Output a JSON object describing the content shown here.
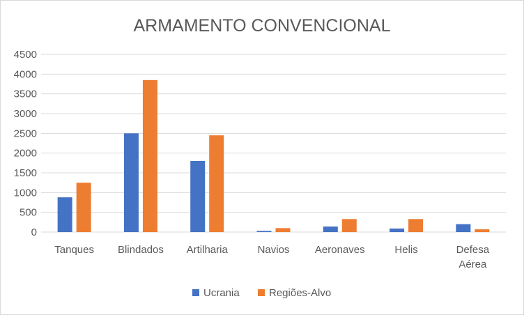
{
  "chart_data": {
    "type": "bar",
    "title": "ARMAMENTO CONVENCIONAL",
    "xlabel": "",
    "ylabel": "",
    "categories": [
      [
        "Tanques"
      ],
      [
        "Blindados"
      ],
      [
        "Artilharia"
      ],
      [
        "Navios"
      ],
      [
        "Aeronaves"
      ],
      [
        "Helis"
      ],
      [
        "Defesa",
        "Aérea"
      ]
    ],
    "series": [
      {
        "name": "Ucrania",
        "color": "#4472c4",
        "values": [
          880,
          2500,
          1800,
          30,
          140,
          90,
          200
        ]
      },
      {
        "name": "Regiões-Alvo",
        "color": "#ed7d31",
        "values": [
          1250,
          3850,
          2450,
          100,
          330,
          330,
          70
        ]
      }
    ],
    "ylim": [
      0,
      4500
    ],
    "yticks": [
      0,
      500,
      1000,
      1500,
      2000,
      2500,
      3000,
      3500,
      4000,
      4500
    ],
    "grid": true,
    "legend": "bottom"
  }
}
